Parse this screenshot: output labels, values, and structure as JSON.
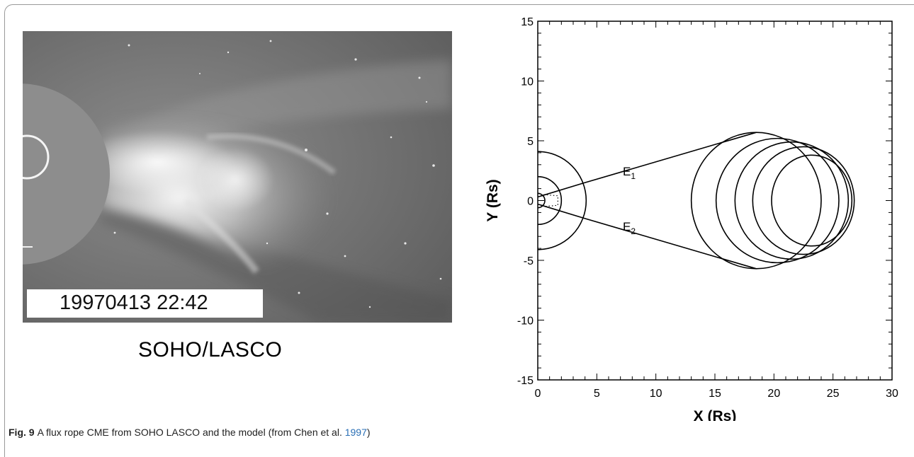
{
  "photo": {
    "timestamp": "19970413 22:42",
    "caption": "SOHO/LASCO"
  },
  "chart_data": {
    "type": "line",
    "xlabel": "X (Rs)",
    "ylabel": "Y (Rs)",
    "xlim": [
      0,
      30
    ],
    "ylim": [
      -15,
      15
    ],
    "xticks": [
      0,
      5,
      10,
      15,
      20,
      25,
      30
    ],
    "yticks": [
      15,
      10,
      5,
      0,
      -5,
      -10,
      -15
    ],
    "x_minor_step": 1,
    "y_minor_step": 1,
    "sun_circles": [
      {
        "cx": 0,
        "cy": 0,
        "r": 0.6
      },
      {
        "cx": 0,
        "cy": 0,
        "r": 2.0
      },
      {
        "cx": 0,
        "cy": 0,
        "r": 4.1
      }
    ],
    "flux_rope_circles": [
      {
        "cx": 18.5,
        "cy": 0,
        "rx": 5.5,
        "ry": 5.7
      },
      {
        "cx": 20.3,
        "cy": 0,
        "rx": 5.2,
        "ry": 5.2
      },
      {
        "cx": 21.5,
        "cy": 0,
        "rx": 4.8,
        "ry": 4.9
      },
      {
        "cx": 22.5,
        "cy": 0,
        "rx": 4.3,
        "ry": 4.5
      },
      {
        "cx": 23.2,
        "cy": 0,
        "rx": 3.4,
        "ry": 3.8
      }
    ],
    "legs": [
      {
        "label": "E",
        "subscript": "1",
        "points": [
          [
            0,
            0.3
          ],
          [
            4,
            1.5
          ],
          [
            18.5,
            5.7
          ]
        ],
        "label_at": [
          7.2,
          2.1
        ]
      },
      {
        "label": "E",
        "subscript": "2",
        "points": [
          [
            0,
            -0.3
          ],
          [
            4,
            -1.5
          ],
          [
            18.5,
            -5.7
          ]
        ],
        "label_at": [
          7.2,
          -2.5
        ]
      }
    ],
    "dotted_foot": {
      "points": [
        [
          0.5,
          0.5
        ],
        [
          1.7,
          0.4
        ],
        [
          1.7,
          -0.4
        ],
        [
          0.5,
          -0.5
        ]
      ]
    },
    "grid": false
  },
  "caption": {
    "label": "Fig. 9",
    "text": "A flux rope CME from SOHO LASCO and the model (from Chen et al. ",
    "year": "1997",
    "close": ")"
  }
}
